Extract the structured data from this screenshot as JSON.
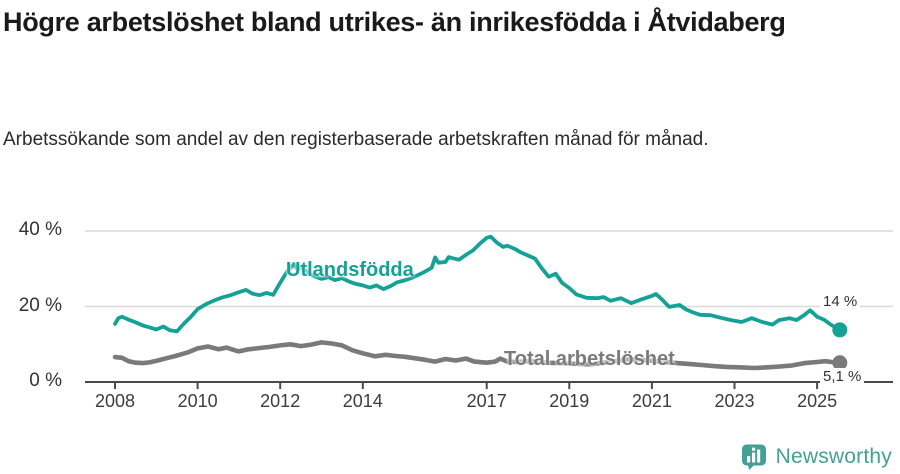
{
  "header": {
    "title": "Högre arbetslöshet bland utrikes- än inrikesfödda i Åtvidaberg",
    "subtitle": "Arbetssökande som andel av den registerbaserade arbetskraften månad för månad."
  },
  "colors": {
    "accent_teal": "#14a296",
    "series_gray": "#7a7a7a",
    "title_text": "#1a1a1a",
    "axis_text": "#3d3d3d",
    "grid_line": "#d9d9d9",
    "axis_line": "#4a4a4a",
    "brand_teal": "#43a097",
    "end_label_text": "#333333"
  },
  "footer": {
    "brand": "Newsworthy",
    "brand_icon": "speech-bubble-bar-chart-icon"
  },
  "chart_data": {
    "type": "line",
    "title": "Högre arbetslöshet bland utrikes- än inrikesfödda i Åtvidaberg",
    "subtitle": "Arbetssökande som andel av den registerbaserade arbetskraften månad för månad.",
    "xlabel": "",
    "ylabel": "",
    "xlim": [
      2007.3,
      2025.9
    ],
    "ylim": [
      0,
      43
    ],
    "grid": "horizontal",
    "legend_position": "inline-labels",
    "x_ticks": {
      "years": [
        2008,
        2010,
        2012,
        2014,
        2017,
        2019,
        2021,
        2023,
        2025
      ],
      "labels": [
        "2008",
        "2010",
        "2012",
        "2014",
        "2017",
        "2019",
        "2021",
        "2023",
        "2025"
      ]
    },
    "y_ticks": {
      "values": [
        0,
        20,
        40
      ],
      "labels": [
        "0 %",
        "20 %",
        "40 %"
      ]
    },
    "series": [
      {
        "name": "Utlandsfödda",
        "color": "#14a296",
        "end_label": "14 %",
        "end_value": 14,
        "x": [
          2008.0,
          2008.08,
          2008.17,
          2008.33,
          2008.5,
          2008.67,
          2008.83,
          2009.0,
          2009.17,
          2009.33,
          2009.5,
          2009.67,
          2009.83,
          2010.0,
          2010.2,
          2010.4,
          2010.6,
          2010.8,
          2011.0,
          2011.17,
          2011.33,
          2011.5,
          2011.67,
          2011.83,
          2012.0,
          2012.17,
          2012.33,
          2012.42,
          2012.5,
          2012.67,
          2012.83,
          2013.0,
          2013.17,
          2013.33,
          2013.5,
          2013.67,
          2013.83,
          2014.0,
          2014.17,
          2014.33,
          2014.5,
          2014.67,
          2014.83,
          2015.0,
          2015.17,
          2015.33,
          2015.5,
          2015.67,
          2015.75,
          2015.83,
          2016.0,
          2016.08,
          2016.17,
          2016.33,
          2016.5,
          2016.67,
          2016.83,
          2017.0,
          2017.1,
          2017.25,
          2017.4,
          2017.5,
          2017.67,
          2017.83,
          2018.0,
          2018.17,
          2018.33,
          2018.5,
          2018.67,
          2018.83,
          2019.0,
          2019.17,
          2019.42,
          2019.67,
          2019.83,
          2020.0,
          2020.25,
          2020.5,
          2020.75,
          2021.0,
          2021.1,
          2021.25,
          2021.42,
          2021.67,
          2021.83,
          2022.0,
          2022.17,
          2022.42,
          2022.67,
          2022.92,
          2023.17,
          2023.42,
          2023.67,
          2023.92,
          2024.08,
          2024.33,
          2024.5,
          2024.67,
          2024.83,
          2025.0,
          2025.17,
          2025.33,
          2025.55
        ],
        "values": [
          15.4,
          16.9,
          17.3,
          16.5,
          15.8,
          15.0,
          14.5,
          13.9,
          14.7,
          13.7,
          13.4,
          15.5,
          17.2,
          19.3,
          20.6,
          21.6,
          22.4,
          23.0,
          23.8,
          24.4,
          23.4,
          23.0,
          23.6,
          23.1,
          26.3,
          29.3,
          31.2,
          29.8,
          30.5,
          29.0,
          28.0,
          27.3,
          27.8,
          27.0,
          27.5,
          26.6,
          26.0,
          25.6,
          25.0,
          25.6,
          24.6,
          25.4,
          26.4,
          26.9,
          27.5,
          28.3,
          29.2,
          30.3,
          33.0,
          31.6,
          31.8,
          33.1,
          32.8,
          32.4,
          33.7,
          34.9,
          36.6,
          38.2,
          38.5,
          36.9,
          35.8,
          36.1,
          35.3,
          34.3,
          33.5,
          32.7,
          30.2,
          27.9,
          28.7,
          26.2,
          24.9,
          23.2,
          22.3,
          22.2,
          22.5,
          21.5,
          22.2,
          20.9,
          21.9,
          22.8,
          23.3,
          21.8,
          19.9,
          20.4,
          19.2,
          18.4,
          17.8,
          17.7,
          17.0,
          16.4,
          15.9,
          16.9,
          15.9,
          15.2,
          16.4,
          16.9,
          16.4,
          17.6,
          19.0,
          17.3,
          16.5,
          15.2,
          13.8
        ]
      },
      {
        "name": "Total arbetslöshet",
        "color": "#7a7a7a",
        "end_label": "5,1 %",
        "end_value": 5.1,
        "x": [
          2008.0,
          2008.17,
          2008.33,
          2008.5,
          2008.67,
          2008.83,
          2009.0,
          2009.25,
          2009.5,
          2009.75,
          2010.0,
          2010.25,
          2010.5,
          2010.7,
          2010.9,
          2011.0,
          2011.2,
          2011.5,
          2011.75,
          2012.0,
          2012.25,
          2012.5,
          2012.75,
          2013.0,
          2013.25,
          2013.5,
          2013.75,
          2014.0,
          2014.3,
          2014.55,
          2014.8,
          2015.0,
          2015.25,
          2015.5,
          2015.75,
          2016.0,
          2016.25,
          2016.5,
          2016.7,
          2017.0,
          2017.2,
          2017.33,
          2017.5,
          2017.75,
          2018.0,
          2018.5,
          2019.0,
          2019.5,
          2020.0,
          2020.4,
          2020.8,
          2021.2,
          2021.6,
          2022.0,
          2022.2,
          2022.5,
          2022.8,
          2023.1,
          2023.5,
          2023.8,
          2024.1,
          2024.4,
          2024.7,
          2025.0,
          2025.2,
          2025.35,
          2025.55
        ],
        "values": [
          6.6,
          6.4,
          5.5,
          5.1,
          5.0,
          5.2,
          5.6,
          6.3,
          7.0,
          7.8,
          8.9,
          9.4,
          8.7,
          9.1,
          8.4,
          8.1,
          8.6,
          9.0,
          9.3,
          9.7,
          10.0,
          9.5,
          9.9,
          10.5,
          10.2,
          9.7,
          8.4,
          7.6,
          6.8,
          7.2,
          6.9,
          6.7,
          6.3,
          5.9,
          5.4,
          6.1,
          5.7,
          6.2,
          5.4,
          5.1,
          5.4,
          6.2,
          5.4,
          5.3,
          5.5,
          5.1,
          4.9,
          4.7,
          5.3,
          6.0,
          5.8,
          5.4,
          5.0,
          4.7,
          4.5,
          4.2,
          4.0,
          3.9,
          3.7,
          3.9,
          4.1,
          4.4,
          5.0,
          5.3,
          5.5,
          5.3,
          5.1
        ]
      }
    ]
  }
}
